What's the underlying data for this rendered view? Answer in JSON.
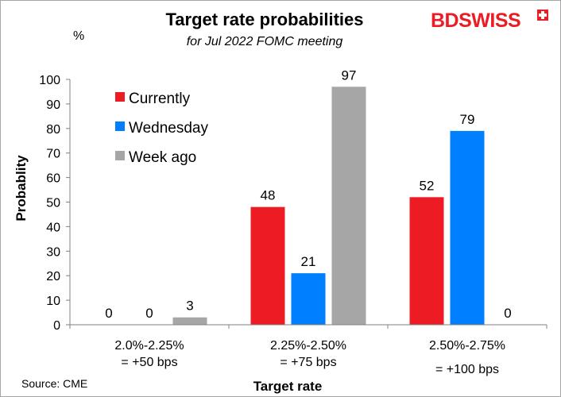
{
  "chart_data": {
    "type": "bar",
    "title": "Target rate probabilities",
    "subtitle": "for Jul 2022 FOMC meeting",
    "y_unit": "%",
    "ylabel": "Probablity",
    "xlabel": "Target rate",
    "source": "Source: CME",
    "ylim": [
      0,
      100
    ],
    "yticks": [
      0,
      10,
      20,
      30,
      40,
      50,
      60,
      70,
      80,
      90,
      100
    ],
    "categories": [
      [
        "2.0%-2.25%",
        "= +50 bps"
      ],
      [
        "2.25%-2.50%",
        "= +75 bps"
      ],
      [
        "2.50%-2.75%",
        "= +100 bps"
      ]
    ],
    "series": [
      {
        "name": "Currently",
        "color": "#ed1c24",
        "values": [
          0,
          48,
          52
        ]
      },
      {
        "name": "Wednesday",
        "color": "#0080ff",
        "values": [
          0,
          21,
          79
        ]
      },
      {
        "name": "Week ago",
        "color": "#a6a6a6",
        "values": [
          3,
          97,
          0
        ]
      }
    ],
    "legend_position": "top-left",
    "grid": false
  },
  "brand": {
    "text_bd": "BD",
    "text_swiss": "SWISS",
    "color": "#ed1c24"
  }
}
